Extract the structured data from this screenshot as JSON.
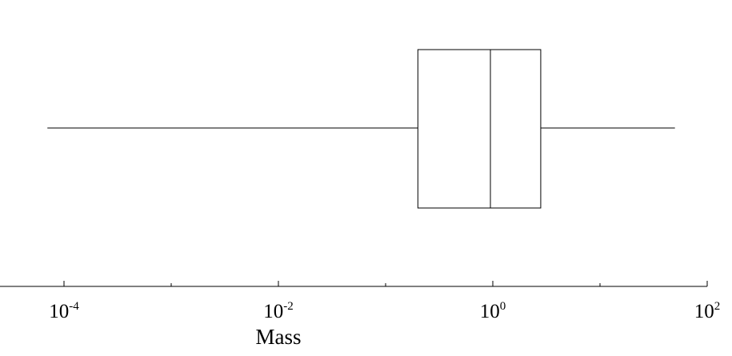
{
  "chart_data": {
    "type": "box",
    "xscale": "log",
    "xlim": [
      1.36e-05,
      100
    ],
    "xlabel": "Mass",
    "xticks": [
      {
        "value": 0.0001,
        "base": "10",
        "exp": "-4"
      },
      {
        "value": 0.01,
        "base": "10",
        "exp": "-2"
      },
      {
        "value": 1,
        "base": "10",
        "exp": "0"
      },
      {
        "value": 100,
        "base": "10",
        "exp": "2"
      }
    ],
    "minor_ticks": [
      0.001,
      0.1,
      10
    ],
    "box": {
      "whisker_low": 7e-05,
      "q1": 0.2,
      "median": 0.95,
      "q3": 2.8,
      "whisker_high": 50
    },
    "colors": {
      "line": "#000000",
      "background": "#ffffff"
    }
  }
}
